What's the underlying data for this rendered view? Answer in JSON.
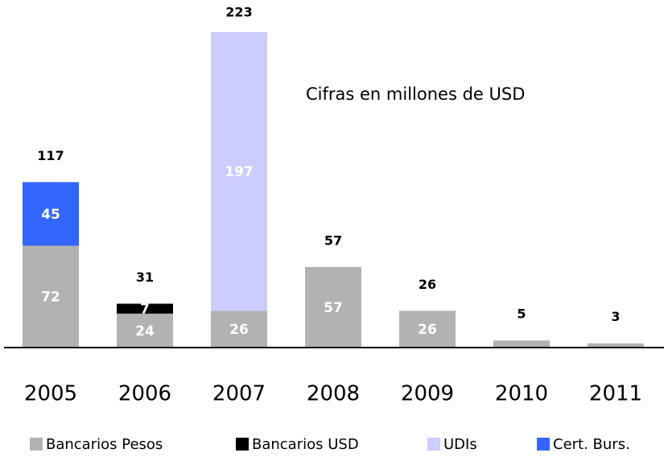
{
  "chart_data": {
    "type": "stacked_bar",
    "annotation": "Cifras en millones de USD",
    "categories": [
      "2005",
      "2006",
      "2007",
      "2008",
      "2009",
      "2010",
      "2011"
    ],
    "series": [
      {
        "name": "Bancarios Pesos",
        "color": "#b2b2b2",
        "values": [
          72,
          24,
          26,
          57,
          26,
          5,
          3
        ]
      },
      {
        "name": "Bancarios USD",
        "color": "#000000",
        "values": [
          null,
          7,
          null,
          null,
          null,
          null,
          null
        ]
      },
      {
        "name": "UDIs",
        "color": "#ccccff",
        "values": [
          null,
          null,
          197,
          null,
          null,
          null,
          null
        ]
      },
      {
        "name": "Cert. Burs.",
        "color": "#3366ff",
        "values": [
          45,
          null,
          null,
          null,
          null,
          null,
          null
        ]
      }
    ],
    "totals": [
      117,
      31,
      223,
      57,
      26,
      5,
      3
    ],
    "legend": "bottom"
  }
}
